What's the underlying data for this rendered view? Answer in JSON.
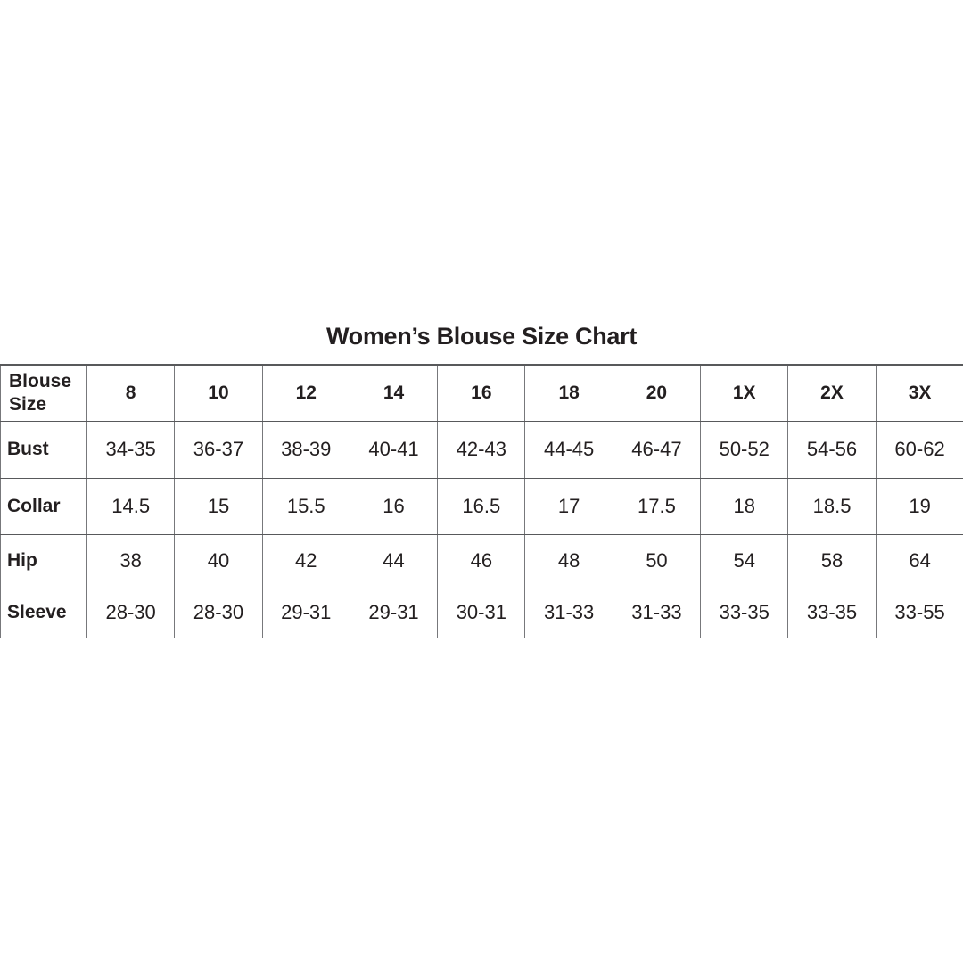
{
  "title": "Women’s Blouse Size Chart",
  "chart_data": {
    "type": "table",
    "title": "Women’s Blouse Size Chart",
    "corner_label": "Blouse Size",
    "size_columns": [
      "8",
      "10",
      "12",
      "14",
      "16",
      "18",
      "20",
      "1X",
      "2X",
      "3X"
    ],
    "rows": [
      {
        "label": "Bust",
        "values": [
          "34-35",
          "36-37",
          "38-39",
          "40-41",
          "42-43",
          "44-45",
          "46-47",
          "50-52",
          "54-56",
          "60-62"
        ]
      },
      {
        "label": "Collar",
        "values": [
          "14.5",
          "15",
          "15.5",
          "16",
          "16.5",
          "17",
          "17.5",
          "18",
          "18.5",
          "19"
        ]
      },
      {
        "label": "Hip",
        "values": [
          "38",
          "40",
          "42",
          "44",
          "46",
          "48",
          "50",
          "54",
          "58",
          "64"
        ]
      },
      {
        "label": "Sleeve",
        "values": [
          "28-30",
          "28-30",
          "29-31",
          "29-31",
          "30-31",
          "31-33",
          "31-33",
          "33-35",
          "33-35",
          "33-55"
        ]
      }
    ],
    "legend": "none",
    "grid": "full table ruling, no bottom border, no right outer border"
  },
  "colors": {
    "text": "#231f20",
    "border_vertical": "#77787b",
    "border_horizontal": "#58595b",
    "background": "#ffffff"
  }
}
